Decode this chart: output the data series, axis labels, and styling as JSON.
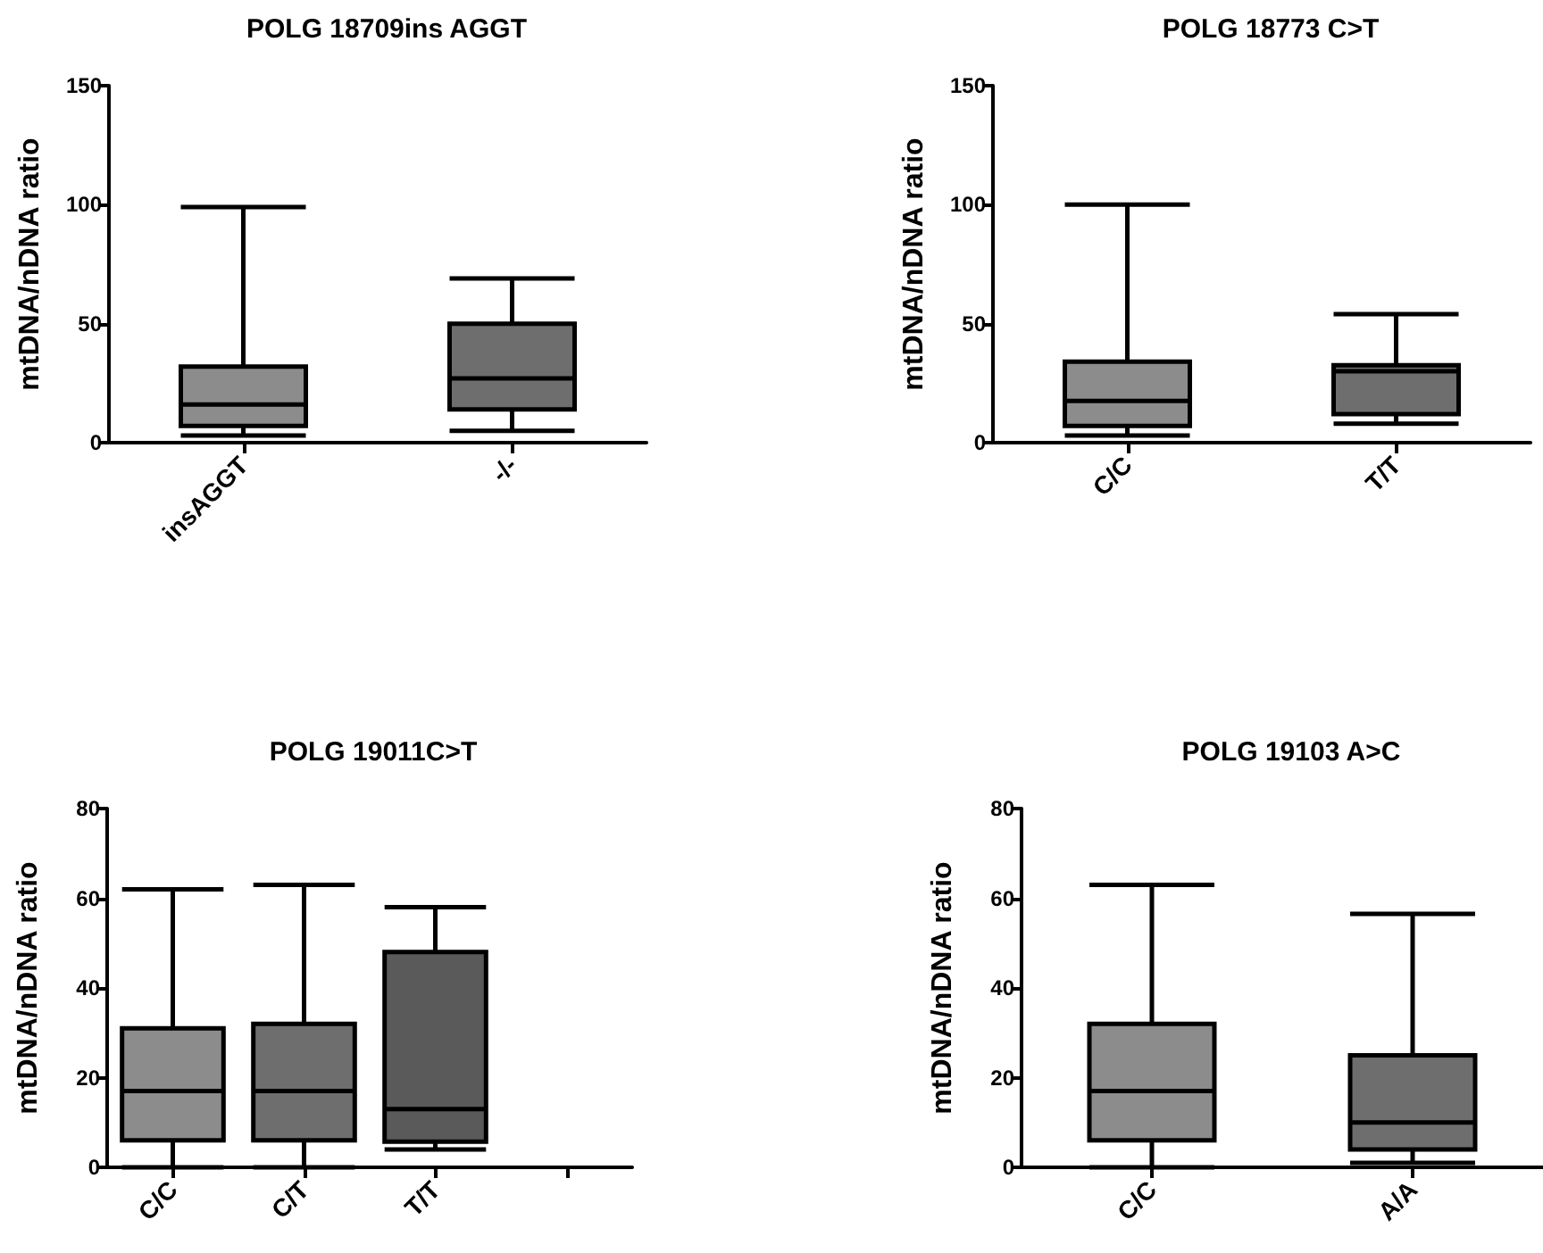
{
  "chart_data": [
    {
      "type": "box",
      "title": "POLG 18709ins AGGT",
      "ylabel": "mtDNA/nDNA ratio",
      "categories": [
        "insAGGT",
        "-/-"
      ],
      "boxes": [
        {
          "low": 3,
          "q1": 7,
          "median": 16,
          "q3": 32,
          "high": 99
        },
        {
          "low": 5,
          "q1": 14,
          "median": 27,
          "q3": 50,
          "high": 69
        }
      ],
      "colors": [
        "#8c8c8c",
        "#6e6e6e"
      ],
      "ylim": [
        0,
        150
      ],
      "yticks": [
        0,
        50,
        100,
        150
      ]
    },
    {
      "type": "box",
      "title": "POLG 18773 C>T",
      "ylabel": "mtDNA/nDNA ratio",
      "categories": [
        "C/C",
        "T/T"
      ],
      "boxes": [
        {
          "low": 3,
          "q1": 7,
          "median": 17.5,
          "q3": 34,
          "high": 100
        },
        {
          "low": 8,
          "q1": 12,
          "median": 30,
          "q3": 32.5,
          "high": 54
        }
      ],
      "colors": [
        "#8c8c8c",
        "#6e6e6e"
      ],
      "ylim": [
        0,
        150
      ],
      "yticks": [
        0,
        50,
        100,
        150
      ]
    },
    {
      "type": "box",
      "title": "POLG 19011C>T",
      "ylabel": "mtDNA/nDNA ratio",
      "categories": [
        "C/C",
        "C/T",
        "T/T",
        null
      ],
      "boxes": [
        {
          "low": 0,
          "q1": 6,
          "median": 17,
          "q3": 31,
          "high": 62
        },
        {
          "low": 0,
          "q1": 6,
          "median": 17,
          "q3": 32,
          "high": 63
        },
        {
          "low": 4,
          "q1": 5.7,
          "median": 13,
          "q3": 48,
          "high": 58
        },
        null
      ],
      "colors": [
        "#8c8c8c",
        "#6e6e6e",
        "#5a5a5a",
        null
      ],
      "ylim": [
        0,
        80
      ],
      "yticks": [
        0,
        20,
        40,
        60,
        80
      ]
    },
    {
      "type": "box",
      "title": "POLG 19103 A>C",
      "ylabel": "mtDNA/nDNA ratio",
      "categories": [
        "C/C",
        "A/A"
      ],
      "boxes": [
        {
          "low": 0,
          "q1": 6,
          "median": 17,
          "q3": 32,
          "high": 63
        },
        {
          "low": 1,
          "q1": 4,
          "median": 10,
          "q3": 25,
          "high": 56.5
        }
      ],
      "colors": [
        "#8c8c8c",
        "#6e6e6e"
      ],
      "ylim": [
        0,
        80
      ],
      "yticks": [
        0,
        20,
        40,
        60,
        80
      ]
    }
  ]
}
